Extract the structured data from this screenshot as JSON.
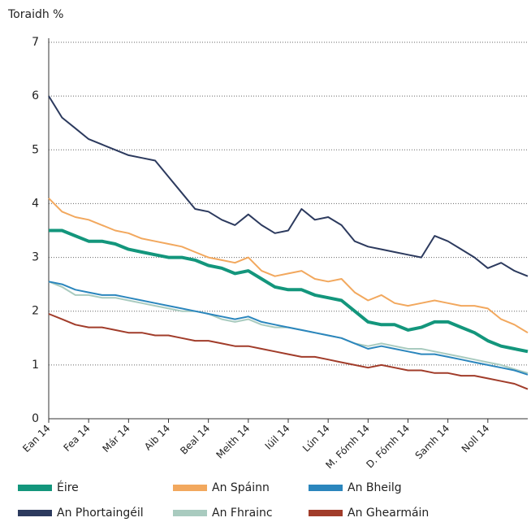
{
  "chart_data": {
    "type": "line",
    "y_label": "Toraidh %",
    "categories": [
      "Ean 14",
      null,
      null,
      "Fea 14",
      null,
      null,
      "Már 14",
      null,
      null,
      "Aib 14",
      null,
      null,
      "Beal 14",
      null,
      null,
      "Meith 14",
      null,
      null,
      "Iúil 14",
      null,
      null,
      "Lún 14",
      null,
      null,
      "M. Fómh 14",
      null,
      null,
      "D. Fómh 14",
      null,
      null,
      "Samh 14",
      null,
      null,
      "Noll 14",
      null,
      null,
      null
    ],
    "ylim": [
      0,
      7
    ],
    "yticks": [
      0,
      1,
      2,
      3,
      4,
      5,
      6,
      7
    ],
    "grid": true,
    "series": [
      {
        "name": "Éire",
        "color": "#13967c",
        "values": [
          3.5,
          3.5,
          3.4,
          3.3,
          3.3,
          3.25,
          3.15,
          3.1,
          3.05,
          3.0,
          3.0,
          2.95,
          2.85,
          2.8,
          2.7,
          2.75,
          2.6,
          2.45,
          2.4,
          2.4,
          2.3,
          2.25,
          2.2,
          2.0,
          1.8,
          1.75,
          1.75,
          1.65,
          1.7,
          1.8,
          1.8,
          1.7,
          1.6,
          1.45,
          1.35,
          1.3,
          1.25
        ]
      },
      {
        "name": "An Spáinn",
        "color": "#f2a85e",
        "values": [
          4.1,
          3.85,
          3.75,
          3.7,
          3.6,
          3.5,
          3.45,
          3.35,
          3.3,
          3.25,
          3.2,
          3.1,
          3.0,
          2.95,
          2.9,
          3.0,
          2.75,
          2.65,
          2.7,
          2.75,
          2.6,
          2.55,
          2.6,
          2.35,
          2.2,
          2.3,
          2.15,
          2.1,
          2.15,
          2.2,
          2.15,
          2.1,
          2.1,
          2.05,
          1.85,
          1.75,
          1.6
        ]
      },
      {
        "name": "An Bheilg",
        "color": "#2b86bd",
        "values": [
          2.55,
          2.5,
          2.4,
          2.35,
          2.3,
          2.3,
          2.25,
          2.2,
          2.15,
          2.1,
          2.05,
          2.0,
          1.95,
          1.9,
          1.85,
          1.9,
          1.8,
          1.75,
          1.7,
          1.65,
          1.6,
          1.55,
          1.5,
          1.4,
          1.3,
          1.35,
          1.3,
          1.25,
          1.2,
          1.2,
          1.15,
          1.1,
          1.05,
          1.0,
          0.95,
          0.9,
          0.82
        ]
      },
      {
        "name": "An Phortaingéil",
        "color": "#2c3a5e",
        "values": [
          6.0,
          5.6,
          5.4,
          5.2,
          5.1,
          5.0,
          4.9,
          4.85,
          4.8,
          4.5,
          4.2,
          3.9,
          3.85,
          3.7,
          3.6,
          3.8,
          3.6,
          3.45,
          3.5,
          3.9,
          3.7,
          3.75,
          3.6,
          3.3,
          3.2,
          3.15,
          3.1,
          3.05,
          3.0,
          3.4,
          3.3,
          3.15,
          3.0,
          2.8,
          2.9,
          2.75,
          2.65
        ]
      },
      {
        "name": "An Fhrainc",
        "color": "#a9cbbf",
        "values": [
          2.55,
          2.45,
          2.3,
          2.3,
          2.25,
          2.25,
          2.2,
          2.15,
          2.1,
          2.05,
          2.0,
          2.0,
          1.95,
          1.85,
          1.8,
          1.85,
          1.75,
          1.7,
          1.7,
          1.65,
          1.6,
          1.55,
          1.5,
          1.4,
          1.35,
          1.4,
          1.35,
          1.3,
          1.3,
          1.25,
          1.2,
          1.15,
          1.1,
          1.05,
          1.0,
          0.92,
          0.85
        ]
      },
      {
        "name": "An Ghearmáin",
        "color": "#a13c2a",
        "values": [
          1.95,
          1.85,
          1.75,
          1.7,
          1.7,
          1.65,
          1.6,
          1.6,
          1.55,
          1.55,
          1.5,
          1.45,
          1.45,
          1.4,
          1.35,
          1.35,
          1.3,
          1.25,
          1.2,
          1.15,
          1.15,
          1.1,
          1.05,
          1.0,
          0.95,
          1.0,
          0.95,
          0.9,
          0.9,
          0.85,
          0.85,
          0.8,
          0.8,
          0.75,
          0.7,
          0.65,
          0.55
        ]
      }
    ]
  }
}
